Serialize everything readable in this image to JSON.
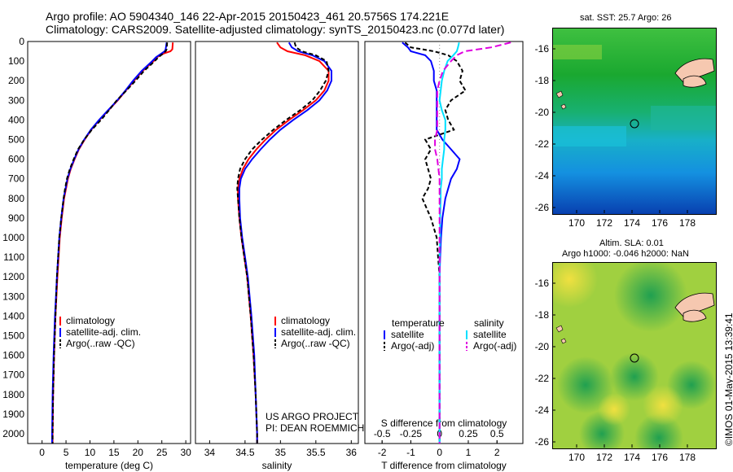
{
  "header": {
    "line1": "Argo profile: AO 5904340_146 22-Apr-2015 20150423_461 20.5756S 174.221E",
    "line2": "Climatology: CARS2009. Satellite-adjusted climatology: synTS_20150423.nc (0.077d later)"
  },
  "colors": {
    "climatology": "#ff0000",
    "satellite": "#0000ff",
    "argo": "#000000",
    "sat_salinity": "#00e0ff",
    "argo_salinity": "#e000e0"
  },
  "depth_ticks": [
    "0",
    "100",
    "200",
    "300",
    "400",
    "500",
    "600",
    "700",
    "800",
    "900",
    "1000",
    "1100",
    "1200",
    "1300",
    "1400",
    "1500",
    "1600",
    "1700",
    "1800",
    "1900",
    "2000"
  ],
  "chart_data": [
    {
      "type": "line",
      "name": "temperature",
      "xlabel": "temperature (deg C)",
      "xlim": [
        -3,
        31
      ],
      "ylim": [
        0,
        2050
      ],
      "xticks": [
        "0",
        "5",
        "10",
        "15",
        "20",
        "25",
        "30"
      ],
      "legend": [
        "climatology",
        "satellite-adj. clim.",
        "Argo(..raw -QC)"
      ],
      "depth": [
        5,
        40,
        50,
        60,
        80,
        100,
        150,
        200,
        250,
        300,
        350,
        400,
        450,
        500,
        550,
        600,
        650,
        700,
        750,
        800,
        900,
        1000,
        1200,
        1400,
        1600,
        1800,
        2000,
        2050
      ],
      "series": [
        {
          "name": "climatology",
          "values": [
            27.3,
            27.2,
            26.8,
            25.5,
            24.0,
            23.3,
            21.0,
            19.2,
            17.5,
            15.8,
            13.9,
            12.0,
            10.3,
            8.9,
            7.7,
            6.8,
            6.0,
            5.4,
            5.0,
            4.6,
            4.1,
            3.7,
            3.2,
            2.8,
            2.5,
            2.3,
            2.2,
            2.2
          ]
        },
        {
          "name": "satellite-adj. clim.",
          "values": [
            26.0,
            25.8,
            25.6,
            25.0,
            23.8,
            23.0,
            20.8,
            19.0,
            17.4,
            15.7,
            13.8,
            11.9,
            10.2,
            8.8,
            7.6,
            6.7,
            5.9,
            5.3,
            4.9,
            4.5,
            4.0,
            3.6,
            3.1,
            2.7,
            2.4,
            2.2,
            2.1,
            2.1
          ]
        },
        {
          "name": "Argo(..raw -QC)",
          "values": [
            26.1,
            26.0,
            25.8,
            25.3,
            24.3,
            23.5,
            21.3,
            19.5,
            17.6,
            15.6,
            14.0,
            12.3,
            10.4,
            8.8,
            7.5,
            6.6,
            5.8,
            5.2,
            4.8,
            4.5,
            4.0,
            3.6,
            3.1,
            2.8,
            2.5,
            2.3,
            2.2,
            2.2
          ]
        }
      ]
    },
    {
      "type": "line",
      "name": "salinity",
      "xlabel": "salinity",
      "xlim": [
        33.8,
        36.1
      ],
      "ylim": [
        0,
        2050
      ],
      "xticks": [
        "34",
        "34.5",
        "35",
        "35.5",
        "36"
      ],
      "legend": [
        "climatology",
        "satellite-adj. clim.",
        "Argo(..raw -QC)"
      ],
      "depth": [
        5,
        30,
        50,
        70,
        100,
        150,
        200,
        250,
        300,
        350,
        400,
        450,
        500,
        550,
        600,
        650,
        700,
        750,
        800,
        900,
        1000,
        1100,
        1200,
        1400,
        1600,
        1800,
        2000,
        2050
      ],
      "series": [
        {
          "name": "climatology",
          "values": [
            34.95,
            35.0,
            35.1,
            35.35,
            35.55,
            35.68,
            35.68,
            35.62,
            35.5,
            35.32,
            35.12,
            34.94,
            34.79,
            34.66,
            34.55,
            34.47,
            34.42,
            34.4,
            34.4,
            34.42,
            34.45,
            34.49,
            34.53,
            34.58,
            34.62,
            34.65,
            34.67,
            34.67
          ]
        },
        {
          "name": "satellite-adj. clim.",
          "values": [
            35.12,
            35.16,
            35.25,
            35.45,
            35.62,
            35.72,
            35.72,
            35.66,
            35.55,
            35.38,
            35.18,
            35.0,
            34.85,
            34.72,
            34.6,
            34.5,
            34.44,
            34.42,
            34.42,
            34.43,
            34.46,
            34.5,
            34.54,
            34.59,
            34.63,
            34.65,
            34.67,
            34.67
          ]
        },
        {
          "name": "Argo(..raw -QC)",
          "values": [
            35.2,
            35.22,
            35.3,
            35.5,
            35.65,
            35.68,
            35.64,
            35.56,
            35.45,
            35.28,
            35.08,
            34.9,
            34.74,
            34.6,
            34.5,
            34.43,
            34.4,
            34.39,
            34.4,
            34.42,
            34.45,
            34.49,
            34.53,
            34.58,
            34.62,
            34.65,
            34.67,
            34.67
          ]
        }
      ]
    },
    {
      "type": "line",
      "name": "differences",
      "xlabel": "T difference from climatology",
      "x2label": "S difference from climatology",
      "xlim": [
        -2.6,
        2.9
      ],
      "x2lim": [
        -0.65,
        0.725
      ],
      "ylim": [
        0,
        2050
      ],
      "xticks": [
        "-2",
        "-1",
        "0",
        "1",
        "2"
      ],
      "x2ticks": [
        "-0.5",
        "-0.25",
        "0",
        "0.25",
        "0.5"
      ],
      "legend_headers": [
        "temperature",
        "salinity"
      ],
      "legend": [
        "satellite",
        "Argo(-adj)",
        "satellite",
        "Argo(-adj)"
      ],
      "depth": [
        5,
        30,
        50,
        70,
        100,
        150,
        200,
        250,
        300,
        350,
        400,
        450,
        500,
        550,
        600,
        650,
        700,
        750,
        800,
        900,
        1000,
        1100,
        1200,
        1400,
        1600,
        1800,
        2000,
        2050
      ],
      "series": [
        {
          "name": "temperature satellite",
          "axis": "T",
          "values": [
            -1.3,
            -1.1,
            -1.0,
            -0.5,
            -0.3,
            -0.2,
            -0.2,
            -0.1,
            -0.1,
            -0.1,
            -0.1,
            -0.1,
            0.1,
            0.4,
            0.7,
            0.6,
            0.4,
            0.3,
            0.2,
            0.1,
            0.05,
            0.02,
            0.0,
            0.0,
            0.0,
            0.0,
            0.0,
            0.0
          ]
        },
        {
          "name": "temperature Argo(-adj)",
          "axis": "T",
          "values": [
            -1.2,
            -1.0,
            -0.2,
            0.3,
            0.6,
            0.8,
            0.7,
            0.9,
            0.4,
            0.2,
            0.3,
            0.5,
            -0.5,
            -0.3,
            -0.5,
            -0.4,
            -0.3,
            -0.4,
            -0.6,
            -0.3,
            -0.1,
            -0.05,
            0.0,
            0.0,
            0.0,
            0.0,
            0.0,
            0.0
          ]
        },
        {
          "name": "salinity satellite",
          "axis": "S",
          "values": [
            0.17,
            0.16,
            0.15,
            0.12,
            0.07,
            0.04,
            0.02,
            0.01,
            0.0,
            0.02,
            0.05,
            0.05,
            0.04,
            0.04,
            0.03,
            0.02,
            0.02,
            0.01,
            0.01,
            0.005,
            0.005,
            0.0,
            0.0,
            0.0,
            0.0,
            0.0,
            0.0,
            0.0
          ]
        },
        {
          "name": "salinity Argo(-adj)",
          "axis": "S",
          "values": [
            0.62,
            0.45,
            0.22,
            0.15,
            0.1,
            0.03,
            0.0,
            -0.02,
            -0.02,
            -0.02,
            -0.02,
            -0.02,
            -0.04,
            -0.04,
            -0.02,
            -0.01,
            0.0,
            0.0,
            0.0,
            0.0,
            0.0,
            0.0,
            0.0,
            0.0,
            0.0,
            0.0,
            0.0,
            0.0
          ]
        }
      ]
    }
  ],
  "credits": {
    "line1": "US ARGO PROJECT",
    "line2": "PI: DEAN ROEMMICH"
  },
  "maps": {
    "sst": {
      "title": "sat. SST: 25.7 Argo: 26"
    },
    "sla": {
      "title1": "Altim. SLA: 0.01",
      "title2": "Argo h1000: -0.046 h2000: NaN"
    },
    "lat_ticks": [
      "-16",
      "-18",
      "-20",
      "-22",
      "-24",
      "-26"
    ],
    "lon_ticks": [
      "170",
      "172",
      "174",
      "176",
      "178"
    ]
  },
  "footer": {
    "stamp": "©IMOS 01-May-2015 13:39:41"
  }
}
